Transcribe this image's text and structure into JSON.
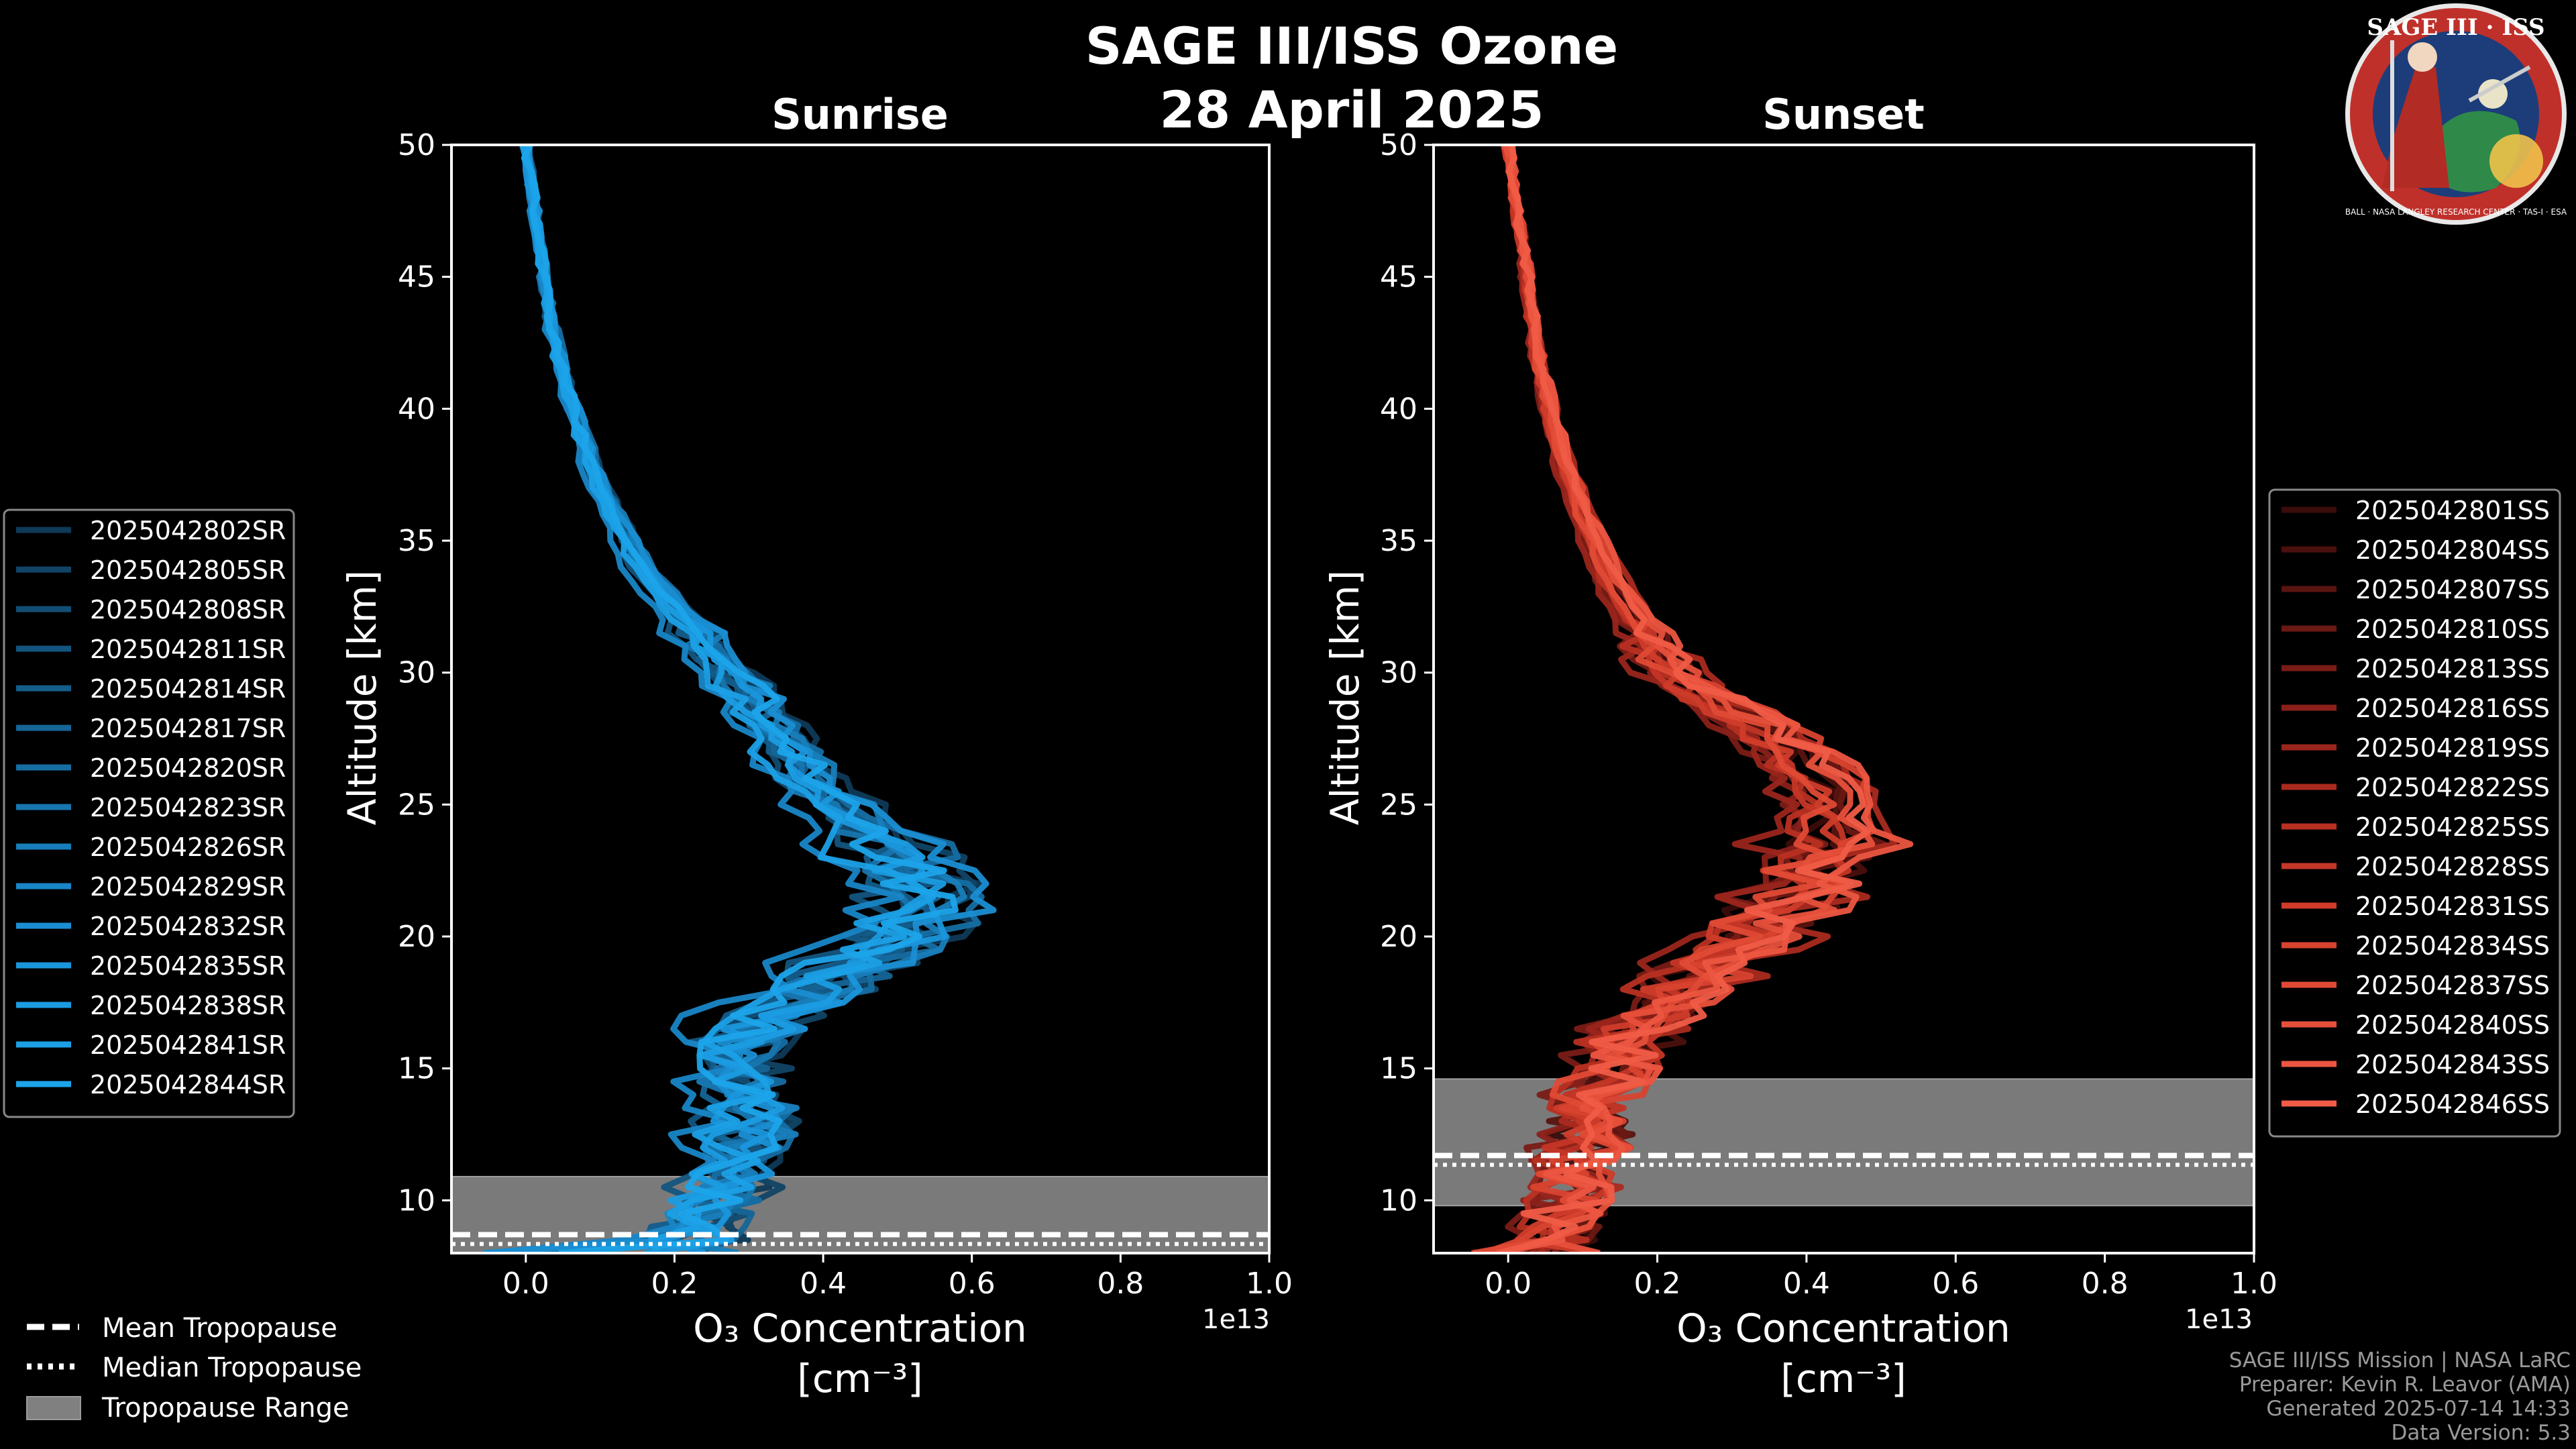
{
  "title": "SAGE III/ISS Ozone",
  "date": "28 April 2025",
  "logo": {
    "text": "SAGE III · ISS",
    "ring_text": "BALL · NASA LANGLEY RESEARCH CENTER · TAS-I · ESA"
  },
  "footer": {
    "line1": "SAGE III/ISS Mission | NASA LaRC",
    "line2": "Preparer: Kevin R. Leavor (AMA)",
    "line3": "Generated 2025-07-14 14:33",
    "line4": "Data Version: 5.3"
  },
  "tropopause_legend": {
    "mean": "Mean Tropopause",
    "median": "Median Tropopause",
    "range": "Tropopause Range"
  },
  "chart_data": [
    {
      "type": "line",
      "title": "Sunrise",
      "xlabel": "O₃ Concentration",
      "xlabel_units": "[cm⁻³]",
      "ylabel": "Altitude [km]",
      "x_scale_label": "1e13",
      "xlim": [
        -0.1,
        1.0
      ],
      "ylim": [
        8,
        50
      ],
      "xticks": [
        "0.0",
        "0.2",
        "0.4",
        "0.6",
        "0.8",
        "1.0"
      ],
      "xtick_values": [
        0.0,
        0.2,
        0.4,
        0.6,
        0.8,
        1.0
      ],
      "yticks": [
        "10",
        "15",
        "20",
        "25",
        "30",
        "35",
        "40",
        "45",
        "50"
      ],
      "ytick_values": [
        10,
        15,
        20,
        25,
        30,
        35,
        40,
        45,
        50
      ],
      "tropopause": {
        "mean": 8.7,
        "median": 8.6,
        "range": [
          8.0,
          10.9
        ]
      },
      "base_color": "#1aa0e6",
      "series_names": [
        "2025042802SR",
        "2025042805SR",
        "2025042808SR",
        "2025042811SR",
        "2025042814SR",
        "2025042817SR",
        "2025042820SR",
        "2025042823SR",
        "2025042826SR",
        "2025042829SR",
        "2025042832SR",
        "2025042835SR",
        "2025042838SR",
        "2025042841SR",
        "2025042844SR"
      ],
      "series_colors": [
        "#0f3a58",
        "#114466",
        "#124d73",
        "#13557f",
        "#145d8b",
        "#156597",
        "#166ea3",
        "#1776af",
        "#187ebb",
        "#1986c7",
        "#1a8ed2",
        "#1a96dc",
        "#1b9ce2",
        "#1ba0e6",
        "#1ca4ea"
      ],
      "mean_profile": {
        "alt": [
          8,
          9,
          10,
          11,
          12,
          13,
          14,
          15,
          16,
          17,
          18,
          19,
          20,
          21,
          22,
          23,
          24,
          25,
          26,
          27,
          28,
          29,
          30,
          32,
          34,
          36,
          38,
          40,
          42,
          44,
          46,
          48,
          50
        ],
        "o3": [
          0.22,
          0.24,
          0.26,
          0.28,
          0.3,
          0.31,
          0.3,
          0.29,
          0.3,
          0.34,
          0.4,
          0.46,
          0.52,
          0.55,
          0.54,
          0.51,
          0.47,
          0.43,
          0.39,
          0.36,
          0.34,
          0.31,
          0.28,
          0.22,
          0.16,
          0.12,
          0.09,
          0.065,
          0.045,
          0.03,
          0.02,
          0.01,
          0.0
        ]
      }
    },
    {
      "type": "line",
      "title": "Sunset",
      "xlabel": "O₃ Concentration",
      "xlabel_units": "[cm⁻³]",
      "ylabel": "Altitude [km]",
      "x_scale_label": "1e13",
      "xlim": [
        -0.1,
        1.0
      ],
      "ylim": [
        8,
        50
      ],
      "xticks": [
        "0.0",
        "0.2",
        "0.4",
        "0.6",
        "0.8",
        "1.0"
      ],
      "xtick_values": [
        0.0,
        0.2,
        0.4,
        0.6,
        0.8,
        1.0
      ],
      "yticks": [
        "10",
        "15",
        "20",
        "25",
        "30",
        "35",
        "40",
        "45",
        "50"
      ],
      "ytick_values": [
        10,
        15,
        20,
        25,
        30,
        35,
        40,
        45,
        50
      ],
      "tropopause": {
        "mean": 11.7,
        "median": 11.6,
        "range": [
          9.8,
          14.6
        ]
      },
      "base_color": "#f05a4a",
      "series_names": [
        "2025042801SS",
        "2025042804SS",
        "2025042807SS",
        "2025042810SS",
        "2025042813SS",
        "2025042816SS",
        "2025042819SS",
        "2025042822SS",
        "2025042825SS",
        "2025042828SS",
        "2025042831SS",
        "2025042834SS",
        "2025042837SS",
        "2025042840SS",
        "2025042843SS",
        "2025042846SS"
      ],
      "series_colors": [
        "#3a0c0a",
        "#4a100d",
        "#5a1410",
        "#6a1813",
        "#7a1c16",
        "#8a2019",
        "#9a251c",
        "#aa2a1f",
        "#b83022",
        "#c43626",
        "#cf3c2a",
        "#d8432f",
        "#e04a35",
        "#e6503b",
        "#ec5641",
        "#f05c47"
      ],
      "mean_profile": {
        "alt": [
          8,
          9,
          10,
          11,
          12,
          13,
          14,
          15,
          16,
          17,
          18,
          19,
          20,
          21,
          22,
          23,
          24,
          25,
          26,
          27,
          28,
          29,
          30,
          32,
          34,
          36,
          38,
          40,
          42,
          44,
          46,
          48,
          50
        ],
        "o3": [
          0.06,
          0.07,
          0.08,
          0.09,
          0.1,
          0.11,
          0.12,
          0.14,
          0.16,
          0.2,
          0.24,
          0.28,
          0.32,
          0.36,
          0.4,
          0.43,
          0.44,
          0.44,
          0.42,
          0.38,
          0.33,
          0.27,
          0.22,
          0.17,
          0.13,
          0.1,
          0.075,
          0.055,
          0.04,
          0.03,
          0.02,
          0.01,
          0.0
        ]
      }
    }
  ]
}
